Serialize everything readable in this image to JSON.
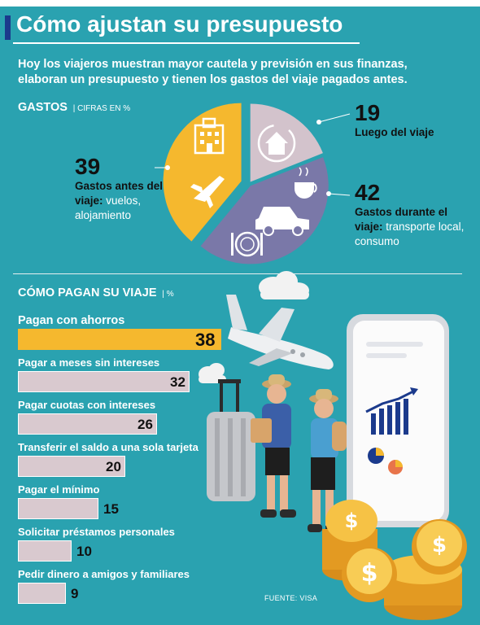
{
  "title": "Cómo ajustan su presupuesto",
  "intro": "Hoy los viajeros muestran mayor cautela y previsión en sus finanzas, elaboran un presupuesto y tienen los gastos del viaje pagados antes.",
  "source": "FUENTE: VISA",
  "colors": {
    "background": "#2aa2b0",
    "highlight": "#f5b82e",
    "bar": "#d9c9cf",
    "pie_after": "#d3c3cc",
    "pie_during": "#7a78a8",
    "navy": "#1b3a8c"
  },
  "chart_data": [
    {
      "type": "pie",
      "title": "GASTOS",
      "subtitle": "CIFRAS EN %",
      "slices": [
        {
          "value": 39,
          "label_bold": "Gastos antes del viaje:",
          "label_rest": "vuelos, alojamiento",
          "color": "#f5b82e"
        },
        {
          "value": 19,
          "label_bold": "Luego del viaje",
          "label_rest": "",
          "color": "#d3c3cc"
        },
        {
          "value": 42,
          "label_bold": "Gastos durante el viaje:",
          "label_rest": "transporte local, consumo",
          "color": "#7a78a8"
        }
      ]
    },
    {
      "type": "bar",
      "title": "CÓMO PAGAN SU VIAJE",
      "subtitle": "%",
      "categories": [
        "Pagan con ahorros",
        "Pagar a meses sin intereses",
        "Pagar cuotas con intereses",
        "Transferir el saldo a una sola tarjeta",
        "Pagar el mínimo",
        "Solicitar préstamos personales",
        "Pedir dinero a amigos y familiares"
      ],
      "values": [
        38,
        32,
        26,
        20,
        15,
        10,
        9
      ]
    }
  ]
}
